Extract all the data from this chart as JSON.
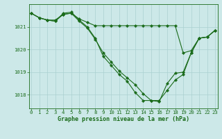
{
  "title": "Graphe pression niveau de la mer (hPa)",
  "bg_color": "#cce8e8",
  "grid_color": "#aad0d0",
  "line_color": "#1a6b1a",
  "marker_color": "#1a6b1a",
  "x_min": 0,
  "x_max": 23,
  "y_min": 1017.4,
  "y_max": 1022.0,
  "yticks": [
    1018,
    1019,
    1020,
    1021
  ],
  "series": [
    [
      1021.6,
      1021.4,
      1021.3,
      1021.3,
      1021.55,
      1021.6,
      1021.35,
      1021.2,
      1021.05,
      1021.05,
      1021.05,
      1021.05,
      1021.05,
      1021.05,
      1021.05,
      1021.05,
      1021.05,
      1021.05,
      1021.05,
      1019.85,
      1019.95,
      1020.5,
      1020.55,
      1020.85
    ],
    [
      1021.6,
      1021.4,
      1021.3,
      1021.25,
      1021.6,
      1021.65,
      1021.3,
      1021.0,
      1020.5,
      1019.7,
      1019.3,
      1018.9,
      1018.6,
      1018.1,
      1017.75,
      1017.75,
      1017.75,
      1018.2,
      1018.65,
      1018.9,
      1019.85,
      1020.5,
      1020.55,
      1020.85
    ],
    [
      1021.6,
      1021.4,
      1021.3,
      1021.25,
      1021.55,
      1021.6,
      1021.25,
      1020.95,
      1020.45,
      1019.85,
      1019.45,
      1019.05,
      1018.75,
      1018.45,
      1018.05,
      1017.75,
      1017.7,
      1018.5,
      1018.95,
      1019.0,
      1019.85,
      1020.5,
      1020.55,
      1020.85
    ]
  ],
  "figwidth": 3.2,
  "figheight": 2.0,
  "dpi": 100,
  "title_fontsize": 6.0,
  "tick_fontsize": 5.2,
  "linewidth": 0.8,
  "markersize": 2.2
}
